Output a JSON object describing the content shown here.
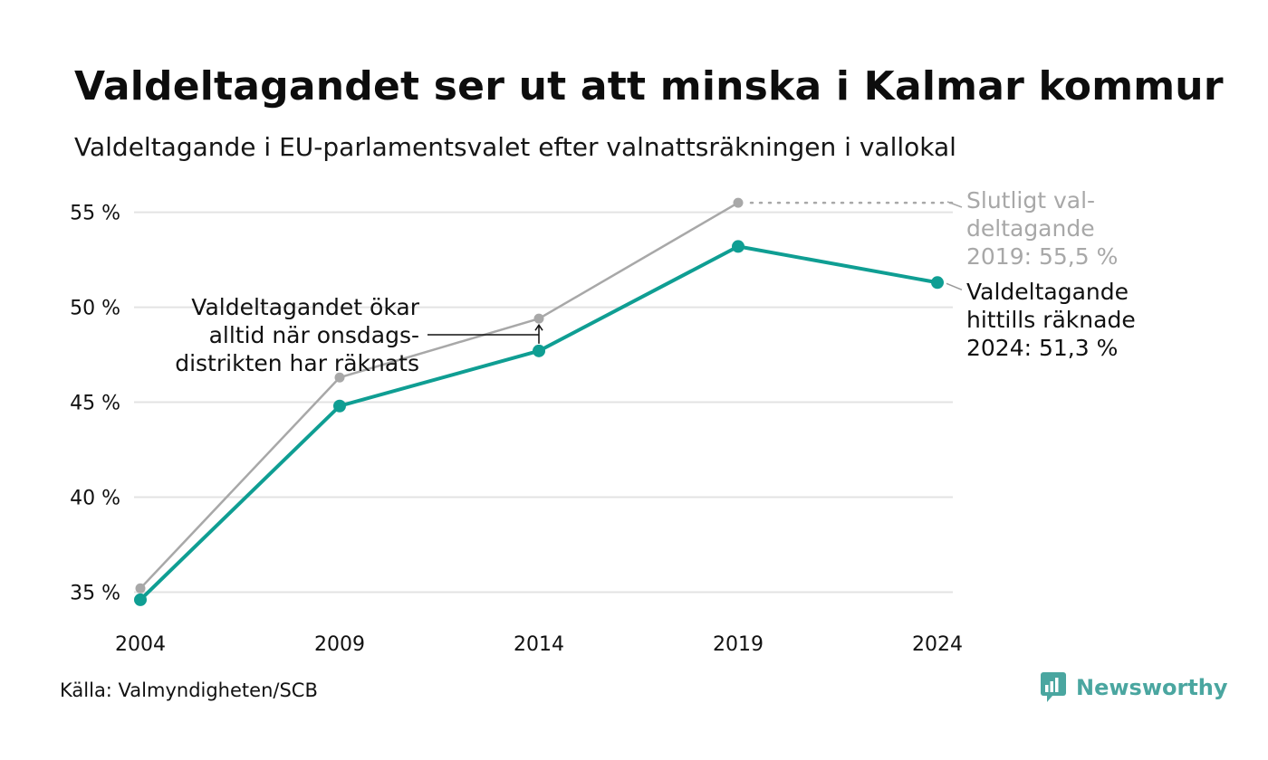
{
  "title": "Valdeltagandet ser ut att minska i Kalmar kommur",
  "subtitle": "Valdeltagande i EU-parlamentsvalet efter valnattsräkningen i vallokal",
  "source": "Källa: Valmyndigheten/SCB",
  "brand": {
    "name": "Newsworthy",
    "icon": "newsworthy-logo-icon",
    "color": "#4aa6a0"
  },
  "colors": {
    "main": "#0f9e93",
    "final": "#a8a8a8",
    "grid": "#e3e3e3",
    "text": "#111111"
  },
  "chart_data": {
    "type": "line",
    "x": [
      "2004",
      "2009",
      "2014",
      "2019",
      "2024"
    ],
    "ylim": [
      34.5,
      55.6
    ],
    "yticks": [
      35,
      40,
      45,
      50,
      55
    ],
    "ytick_labels": [
      "35 %",
      "40 %",
      "45 %",
      "50 %",
      "55 %"
    ],
    "grid": true,
    "series": [
      {
        "key": "final",
        "values": [
          35.2,
          46.3,
          49.4,
          55.5,
          null
        ]
      },
      {
        "key": "election_night",
        "values": [
          34.6,
          44.8,
          47.7,
          53.2,
          51.3
        ]
      }
    ],
    "annotations": {
      "final_2019": [
        "Slutligt val-",
        "deltagande",
        "2019: 55,5 %"
      ],
      "current_2024": [
        "Valdeltagande",
        "hittills räknade",
        "2024: 51,3 %"
      ],
      "wednesday": [
        "Valdeltagandet ökar",
        "alltid när onsdags-",
        "distrikten har räknats"
      ]
    }
  }
}
